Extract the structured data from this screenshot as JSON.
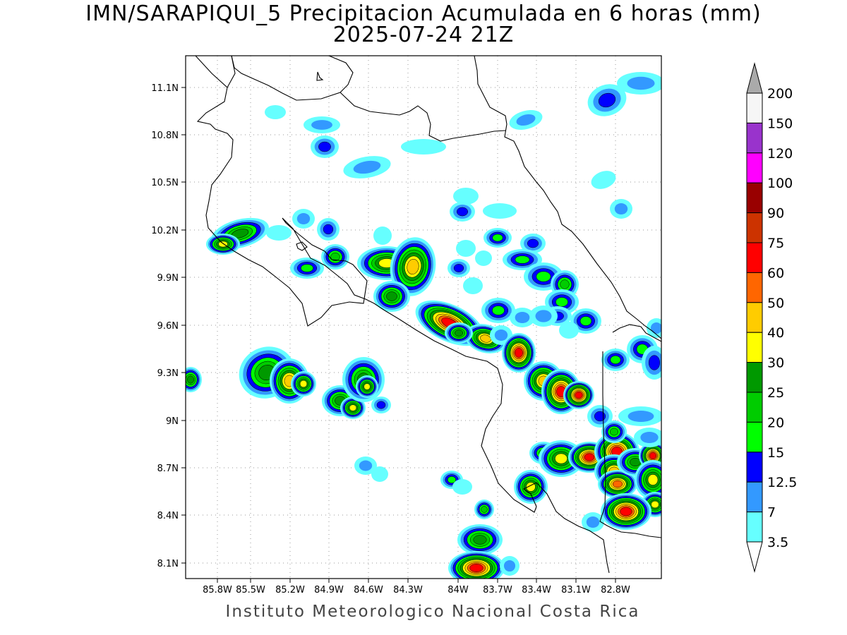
{
  "title": {
    "line1": "IMN/SARAPIQUI_5 Precipitacion Acumulada en 6 horas (mm)",
    "line2": "2025-07-24 21Z"
  },
  "footer": "Instituto Meteorologico Nacional Costa Rica",
  "map": {
    "lon_labels": [
      "85.8W",
      "85.5W",
      "85.2W",
      "84.9W",
      "84.6W",
      "84.3W",
      "84W",
      "83.7W",
      "83.4W",
      "83.1W",
      "82.8W"
    ],
    "lat_labels": [
      "11.1N",
      "10.8N",
      "10.5N",
      "10.2N",
      "9.9N",
      "9.6N",
      "9.3N",
      "9N",
      "8.7N",
      "8.4N",
      "8.1N"
    ],
    "grid": true,
    "coastline_color": "#000000"
  },
  "colorbar": {
    "labels": [
      "200",
      "150",
      "120",
      "100",
      "90",
      "75",
      "60",
      "50",
      "40",
      "30",
      "25",
      "20",
      "15",
      "12.5",
      "7",
      "3.5"
    ],
    "colors": [
      "#f6f6f6",
      "#9933cc",
      "#ff00ff",
      "#990000",
      "#cc3300",
      "#ff0000",
      "#ff6600",
      "#ffcc00",
      "#ffff00",
      "#009900",
      "#00cc00",
      "#00ff00",
      "#0000ff",
      "#3399ff",
      "#66ffff"
    ],
    "top_arrow_color": "#aaaaaa",
    "bottom_arrow_color": "#ffffff"
  }
}
